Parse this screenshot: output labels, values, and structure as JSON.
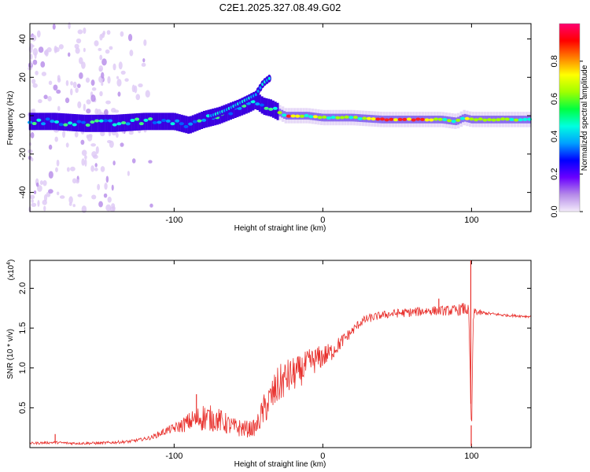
{
  "title": "C2E1.2025.327.08.49.G02",
  "chart_data": [
    {
      "type": "heatmap",
      "name": "spectrogram",
      "xlabel": "Height of straight line (km)",
      "ylabel": "Frequency (Hz)",
      "xlim": [
        -197,
        140
      ],
      "ylim": [
        -50,
        48
      ],
      "xticks": [
        -100,
        0,
        100
      ],
      "xtick_labels": [
        "-100",
        "0",
        "100"
      ],
      "yticks": [
        -40,
        -20,
        0,
        20,
        40
      ],
      "ytick_labels": [
        "-40",
        "-20",
        "0",
        "20",
        "40"
      ],
      "colorbar": {
        "label": "Normalized spectral amplitude",
        "range": [
          0,
          1
        ],
        "ticks": [
          0.0,
          0.2,
          0.4,
          0.6,
          0.8
        ],
        "tick_labels": [
          "0.0",
          "0.2",
          "0.4",
          "0.6",
          "0.8"
        ],
        "colors": [
          "#f4ecfb",
          "#b58ae8",
          "#6a00ff",
          "#0000ff",
          "#00a0ff",
          "#00ffe0",
          "#00ff40",
          "#a0ff00",
          "#ffff00",
          "#ff8000",
          "#ff0000",
          "#ff0070"
        ]
      },
      "ridge": {
        "x": [
          -197,
          -180,
          -160,
          -140,
          -120,
          -100,
          -90,
          -80,
          -70,
          -60,
          -50,
          -45,
          -40,
          -35,
          -30,
          -25,
          -20,
          -10,
          0,
          10,
          20,
          40,
          60,
          80,
          90,
          95,
          100,
          110,
          120,
          140
        ],
        "y": [
          -3,
          -3,
          -4,
          -4,
          -3,
          -3,
          -5,
          -2,
          0,
          3,
          6,
          8,
          5,
          4,
          2,
          0,
          0,
          0,
          -1,
          -1,
          -1,
          -2,
          -2,
          -2,
          -3,
          -1,
          -2,
          -2,
          -2,
          -2
        ]
      },
      "upper_branch": {
        "x": [
          -75,
          -65,
          -55,
          -45,
          -40,
          -35
        ],
        "y": [
          0,
          3,
          7,
          11,
          17,
          20
        ]
      }
    },
    {
      "type": "line",
      "name": "snr",
      "xlabel": "Height of straight line (km)",
      "ylabel": "SNR (10 * v/v)",
      "scale_label": "(x10^4)",
      "scale_base": "(x10",
      "scale_exp": "4",
      "scale_close": ")",
      "xlim": [
        -197,
        140
      ],
      "ylim": [
        0,
        2.35
      ],
      "xticks": [
        -100,
        0,
        100
      ],
      "xtick_labels": [
        "-100",
        "0",
        "100"
      ],
      "yticks": [
        0.5,
        1.0,
        1.5,
        2.0
      ],
      "ytick_labels": [
        "0.5",
        "1.0",
        "1.5",
        "2.0"
      ],
      "color": "#e8302c",
      "envelope": {
        "x": [
          -197,
          -180,
          -170,
          -150,
          -130,
          -115,
          -105,
          -95,
          -88,
          -80,
          -70,
          -60,
          -50,
          -45,
          -40,
          -35,
          -30,
          -25,
          -20,
          -15,
          -10,
          -5,
          0,
          5,
          10,
          15,
          20,
          25,
          30,
          40,
          50,
          60,
          70,
          80,
          90,
          95,
          98,
          99,
          100,
          101,
          102,
          105,
          110,
          120,
          130,
          140
        ],
        "y": [
          0.05,
          0.06,
          0.05,
          0.05,
          0.07,
          0.12,
          0.2,
          0.25,
          0.3,
          0.33,
          0.3,
          0.22,
          0.2,
          0.22,
          0.4,
          0.55,
          0.7,
          0.8,
          0.85,
          0.9,
          1.0,
          1.05,
          1.1,
          1.15,
          1.25,
          1.35,
          1.45,
          1.55,
          1.6,
          1.65,
          1.67,
          1.68,
          1.7,
          1.7,
          1.7,
          1.72,
          1.7,
          1.0,
          0.1,
          1.5,
          1.7,
          1.68,
          1.68,
          1.66,
          1.65,
          1.64
        ]
      },
      "noise_amplitude": {
        "x": [
          -197,
          -120,
          -100,
          -90,
          -80,
          -60,
          -45,
          -40,
          -30,
          -20,
          -10,
          0,
          10,
          20,
          40,
          60,
          80,
          90,
          95,
          105,
          110,
          140
        ],
        "y": [
          0.015,
          0.02,
          0.06,
          0.12,
          0.18,
          0.12,
          0.1,
          0.2,
          0.25,
          0.22,
          0.18,
          0.15,
          0.1,
          0.06,
          0.05,
          0.06,
          0.06,
          0.07,
          0.08,
          0.04,
          0.02,
          0.015
        ]
      },
      "spikes": [
        {
          "x": -180,
          "y": 0.17
        },
        {
          "x": -85,
          "y": 0.67
        },
        {
          "x": 78,
          "y": 1.87
        },
        {
          "x": 99.5,
          "y": 2.35
        },
        {
          "x": 99.8,
          "y": 0.02
        }
      ]
    }
  ]
}
